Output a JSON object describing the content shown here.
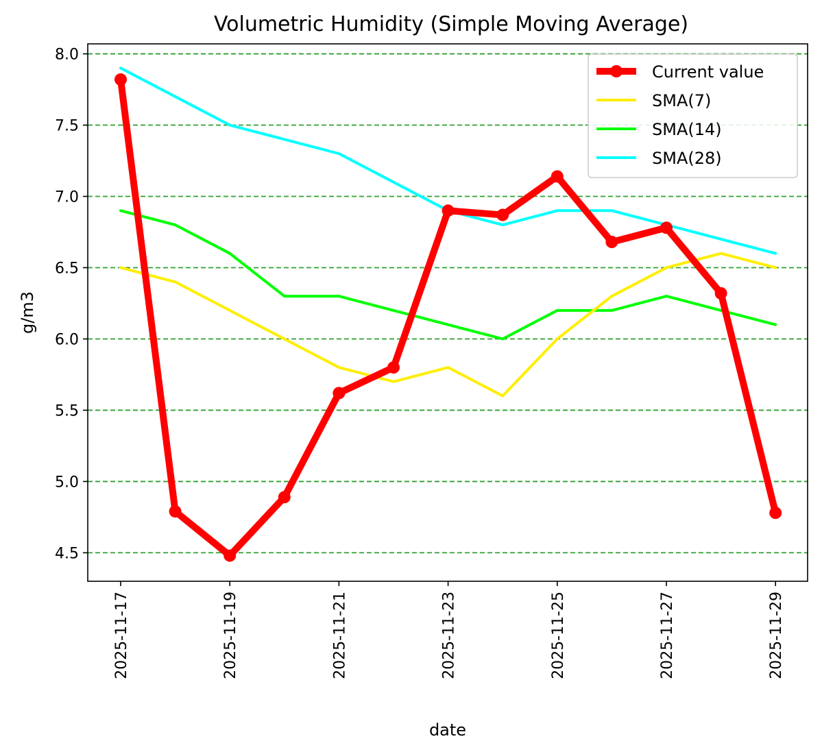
{
  "chart_data": {
    "type": "line",
    "title": "Volumetric Humidity (Simple Moving Average)",
    "xlabel": "date",
    "ylabel": "g/m3",
    "ylim": [
      4.3,
      8.07
    ],
    "yticks": [
      4.5,
      5.0,
      5.5,
      6.0,
      6.5,
      7.0,
      7.5,
      8.0
    ],
    "ytick_labels": [
      "4.5",
      "5.0",
      "5.5",
      "6.0",
      "6.5",
      "7.0",
      "7.5",
      "8.0"
    ],
    "x": [
      "2025-11-17",
      "2025-11-18",
      "2025-11-19",
      "2025-11-20",
      "2025-11-21",
      "2025-11-22",
      "2025-11-23",
      "2025-11-24",
      "2025-11-25",
      "2025-11-26",
      "2025-11-27",
      "2025-11-28",
      "2025-11-29"
    ],
    "xtick_labels": [
      "2025-11-17",
      "2025-11-19",
      "2025-11-21",
      "2025-11-23",
      "2025-11-25",
      "2025-11-27",
      "2025-11-29"
    ],
    "grid": "horizontal dashed",
    "legend_position": "top-right",
    "series": [
      {
        "name": "Current value",
        "color": "#ff0000",
        "markers": true,
        "values": [
          7.82,
          4.79,
          4.48,
          4.89,
          5.62,
          5.8,
          6.9,
          6.87,
          7.14,
          6.68,
          6.78,
          6.32,
          4.78
        ]
      },
      {
        "name": "SMA(7)",
        "color": "#ffee00",
        "markers": false,
        "values": [
          6.5,
          6.4,
          6.2,
          6.0,
          5.8,
          5.7,
          5.8,
          5.6,
          6.0,
          6.3,
          6.5,
          6.6,
          6.5
        ]
      },
      {
        "name": "SMA(14)",
        "color": "#00ff00",
        "markers": false,
        "values": [
          6.9,
          6.8,
          6.6,
          6.3,
          6.3,
          6.2,
          6.1,
          6.0,
          6.2,
          6.2,
          6.3,
          6.2,
          6.1
        ]
      },
      {
        "name": "SMA(28)",
        "color": "#00ffff",
        "markers": false,
        "values": [
          7.9,
          7.7,
          7.5,
          7.4,
          7.3,
          7.1,
          6.9,
          6.8,
          6.9,
          6.9,
          6.8,
          6.7,
          6.6
        ]
      }
    ]
  },
  "colors": {
    "grid": "#2ca02c",
    "axis": "#000000"
  }
}
